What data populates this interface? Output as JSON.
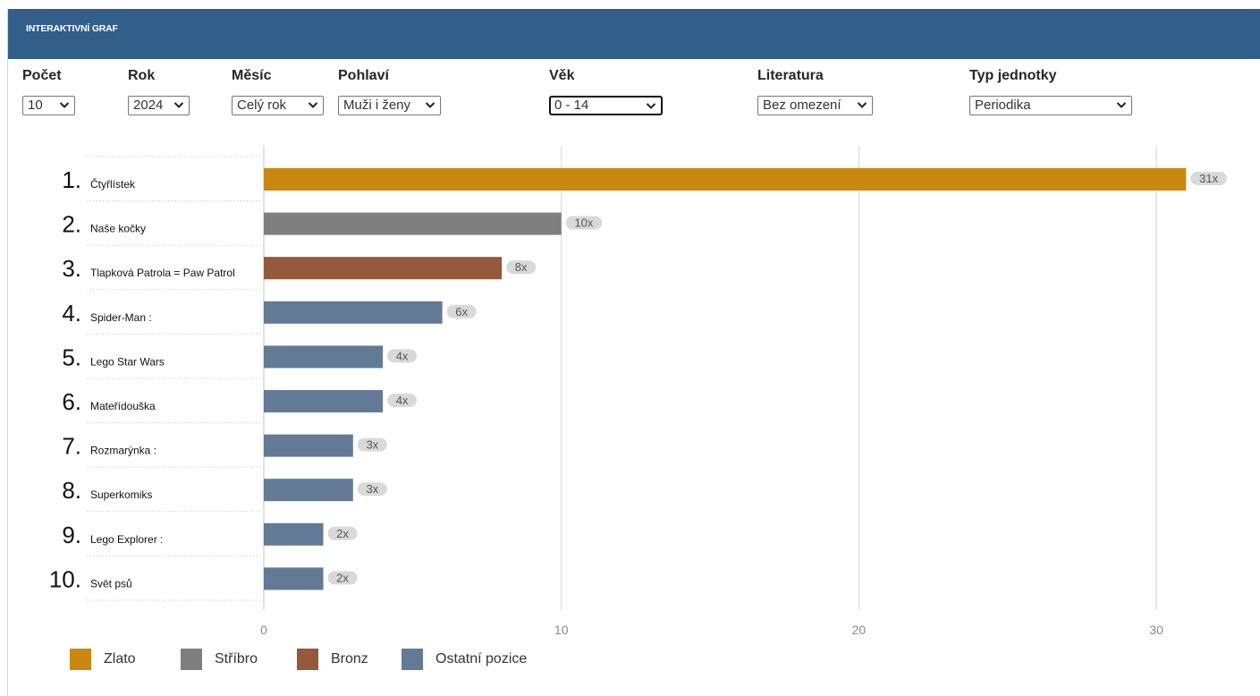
{
  "header": {
    "title": "INTERAKTIVNÍ GRAF"
  },
  "filters": [
    {
      "label": "Počet",
      "value": "10"
    },
    {
      "label": "Rok",
      "value": "2024"
    },
    {
      "label": "Měsíc",
      "value": "Celý rok"
    },
    {
      "label": "Pohlaví",
      "value": "Muži i ženy"
    },
    {
      "label": "Věk",
      "value": "0 - 14"
    },
    {
      "label": "Literatura",
      "value": "Bez omezení"
    },
    {
      "label": "Typ jednotky",
      "value": "Periodika"
    }
  ],
  "colors": {
    "header": "#325e8a",
    "gold": "#c9880f",
    "silver": "#7f7f7f",
    "bronze": "#94583a",
    "other": "#637a97",
    "value_label_bg": "#d9d9d9",
    "grid": "#d4d4d4"
  },
  "chart_data": {
    "type": "bar",
    "orientation": "horizontal",
    "ranks": [
      "1.",
      "2.",
      "3.",
      "4.",
      "5.",
      "6.",
      "7.",
      "8.",
      "9.",
      "10."
    ],
    "categories": [
      "Čtyřlístek",
      "Naše kočky",
      "Tlapková Patrola = Paw Patrol",
      "Spider-Man :",
      "Lego Star Wars",
      "Mateřídouška",
      "Rozmarýnka :",
      "Superkomiks",
      "Lego Explorer :",
      "Svět psů"
    ],
    "values": [
      31,
      10,
      8,
      6,
      4,
      4,
      3,
      3,
      2,
      2
    ],
    "value_labels": [
      "31x",
      "10x",
      "8x",
      "6x",
      "4x",
      "4x",
      "3x",
      "3x",
      "2x",
      "2x"
    ],
    "tiers": [
      "gold",
      "silver",
      "bronze",
      "other",
      "other",
      "other",
      "other",
      "other",
      "other",
      "other"
    ],
    "xlim": [
      0,
      32.5
    ],
    "xticks": [
      0,
      10,
      20,
      30
    ],
    "xtick_labels": [
      "0",
      "10",
      "20",
      "30"
    ],
    "grid": true,
    "legend": [
      {
        "label": "Zlato",
        "tier": "gold"
      },
      {
        "label": "Stříbro",
        "tier": "silver"
      },
      {
        "label": "Bronz",
        "tier": "bronze"
      },
      {
        "label": "Ostatní pozice",
        "tier": "other"
      }
    ],
    "legend_position": "bottom-left"
  }
}
